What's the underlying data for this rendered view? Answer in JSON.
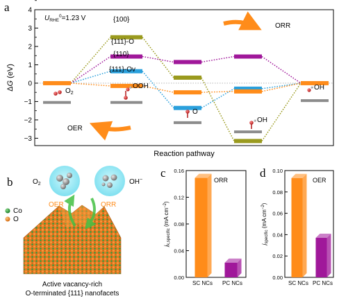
{
  "panels": {
    "a": "a",
    "b": "b",
    "c": "c",
    "d": "d"
  },
  "colors": {
    "orange": "#ff8c1a",
    "olive": "#9a9a1e",
    "purple": "#a0189a",
    "blue": "#2aa0dc",
    "gray": "#8c8c8c",
    "red": "#d42a2a",
    "green_bulk": "#2d9a3a",
    "cyan_bubble": "#8fe8f5"
  },
  "panel_a": {
    "annotation_main": "U",
    "annotation_sub": "RHE",
    "annotation_sup": "0",
    "annotation_value": "=1.23 V",
    "ylabel_prefix": "Δ",
    "ylabel_var": "G",
    "ylabel_unit": " (eV)",
    "xlabel": "Reaction pathway",
    "arrow_orr": "ORR",
    "arrow_oer": "OER",
    "legend_100": "{100}",
    "legend_111o": "{111}-O",
    "legend_110": "{110}",
    "legend_111ov": "{111}-Ov",
    "intermediates": {
      "o2": "O",
      "o2_sub": "2",
      "ooh": "OOH",
      "o": "O",
      "oh": "OH",
      "oh_final": "OH"
    }
  },
  "panel_b": {
    "legend_co": "Co",
    "legend_o": "O",
    "label_o2": "O",
    "label_o2_sub": "2",
    "label_oh": "OH",
    "label_oh_sup": "−",
    "label_oer": "OER",
    "label_orr": "ORR",
    "caption_line1": "Active vacancy-rich",
    "caption_line2": "O-terminated {111} nanofacets"
  },
  "chart_data": [
    {
      "panel": "a",
      "type": "line",
      "title": "",
      "xlabel": "Reaction pathway",
      "ylabel": "ΔG (eV)",
      "ylim": [
        -3.4,
        4.0
      ],
      "yticks": [
        -3,
        -2,
        -1,
        0,
        1,
        2,
        3,
        4
      ],
      "steps": [
        "O2",
        "OOH",
        "O",
        "OH",
        "OH"
      ],
      "series": [
        {
          "name": "{100}",
          "color": "#9a9a1e",
          "values": [
            0,
            2.5,
            0.3,
            -3.15,
            0
          ]
        },
        {
          "name": "{111}-O",
          "color": "#a0189a",
          "values": [
            0,
            1.45,
            1.15,
            1.45,
            0
          ]
        },
        {
          "name": "{110}",
          "color": "#2aa0dc",
          "values": [
            0,
            0.65,
            -1.35,
            -0.3,
            0
          ]
        },
        {
          "name": "{111}-Ov",
          "color": "#ff8c1a",
          "values": [
            0,
            -0.15,
            -0.5,
            -0.45,
            0
          ]
        }
      ],
      "gray_markers": [
        -1.05,
        -1.05,
        -2.15,
        -2.65,
        -0.95
      ]
    },
    {
      "panel": "c",
      "type": "bar",
      "title": "ORR",
      "xlabel": "",
      "ylabel": "j",
      "ylabel_sub": "k,specific",
      "ylabel_unit": " (mA cm",
      "ylabel_sup": "−2",
      "ylabel_close": ")",
      "ylim": [
        0,
        0.16
      ],
      "yticks": [
        "0.00",
        "0.04",
        "0.08",
        "0.12",
        "0.16"
      ],
      "categories": [
        "SC NCs",
        "PC NCs"
      ],
      "values": [
        0.149,
        0.022
      ],
      "colors": [
        "#ff8c1a",
        "#a0189a"
      ]
    },
    {
      "panel": "d",
      "type": "bar",
      "title": "OER",
      "xlabel": "",
      "ylabel": "j",
      "ylabel_sub": "specific",
      "ylabel_unit": " (mA cm",
      "ylabel_sup": "−2",
      "ylabel_close": ")",
      "ylim": [
        0,
        0.1
      ],
      "yticks": [
        "0.00",
        "0.02",
        "0.04",
        "0.06",
        "0.08",
        "0.10"
      ],
      "categories": [
        "SC NCs",
        "PC NCs"
      ],
      "values": [
        0.093,
        0.037
      ],
      "colors": [
        "#ff8c1a",
        "#a0189a"
      ]
    }
  ]
}
